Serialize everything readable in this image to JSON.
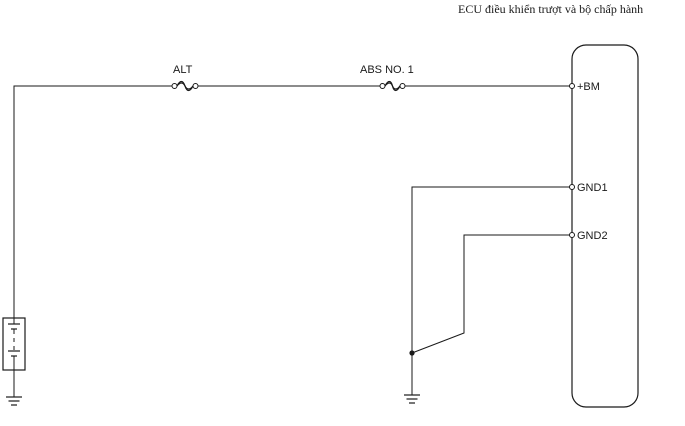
{
  "diagram": {
    "ecu_label": "ECU điều khiển trượt và bộ chấp hành",
    "fuses": {
      "alt": "ALT",
      "abs_no1": "ABS NO. 1"
    },
    "terminals": {
      "bm": "+BM",
      "gnd1": "GND1",
      "gnd2": "GND2"
    },
    "icons": {
      "fuse": "fuse-icon",
      "battery": "battery-icon",
      "ground": "ground-icon"
    }
  }
}
